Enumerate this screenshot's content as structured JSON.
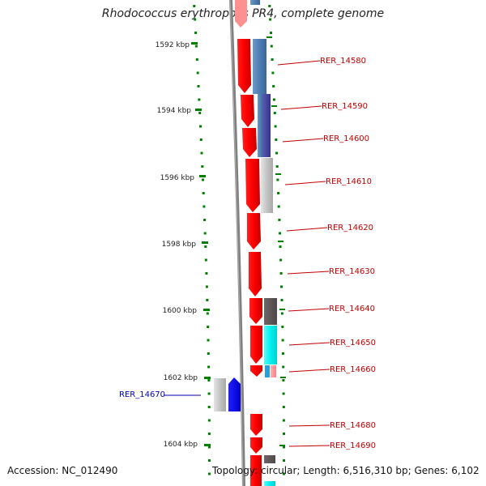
{
  "title": "Rhodococcus erythropolis PR4, complete genome",
  "footer": {
    "accession": "Accession: NC_012490",
    "summary": "Topology: circular; Length: 6,516,310 bp; Genes: 6,102"
  },
  "coords": {
    "ticks": [
      {
        "label": "1592 kbp"
      },
      {
        "label": "1594 kbp"
      },
      {
        "label": "1596 kbp"
      },
      {
        "label": "1598 kbp"
      },
      {
        "label": "1600 kbp"
      },
      {
        "label": "1602 kbp"
      },
      {
        "label": "1604 kbp"
      }
    ]
  },
  "genes": [
    {
      "name": "RER_14580",
      "color": "#c00000"
    },
    {
      "name": "RER_14590",
      "color": "#c00000"
    },
    {
      "name": "RER_14600",
      "color": "#c00000"
    },
    {
      "name": "RER_14610",
      "color": "#c00000"
    },
    {
      "name": "RER_14620",
      "color": "#c00000"
    },
    {
      "name": "RER_14630",
      "color": "#c00000"
    },
    {
      "name": "RER_14640",
      "color": "#c00000"
    },
    {
      "name": "RER_14650",
      "color": "#c00000"
    },
    {
      "name": "RER_14660",
      "color": "#c00000"
    },
    {
      "name": "RER_14670",
      "color": "#0000c0"
    },
    {
      "name": "RER_14680",
      "color": "#c00000"
    },
    {
      "name": "RER_14690",
      "color": "#c00000"
    }
  ],
  "colors": {
    "forward_gene": "#ff0000",
    "reverse_gene": "#0000ff",
    "tick": "#008000",
    "backbone": "#808080"
  }
}
